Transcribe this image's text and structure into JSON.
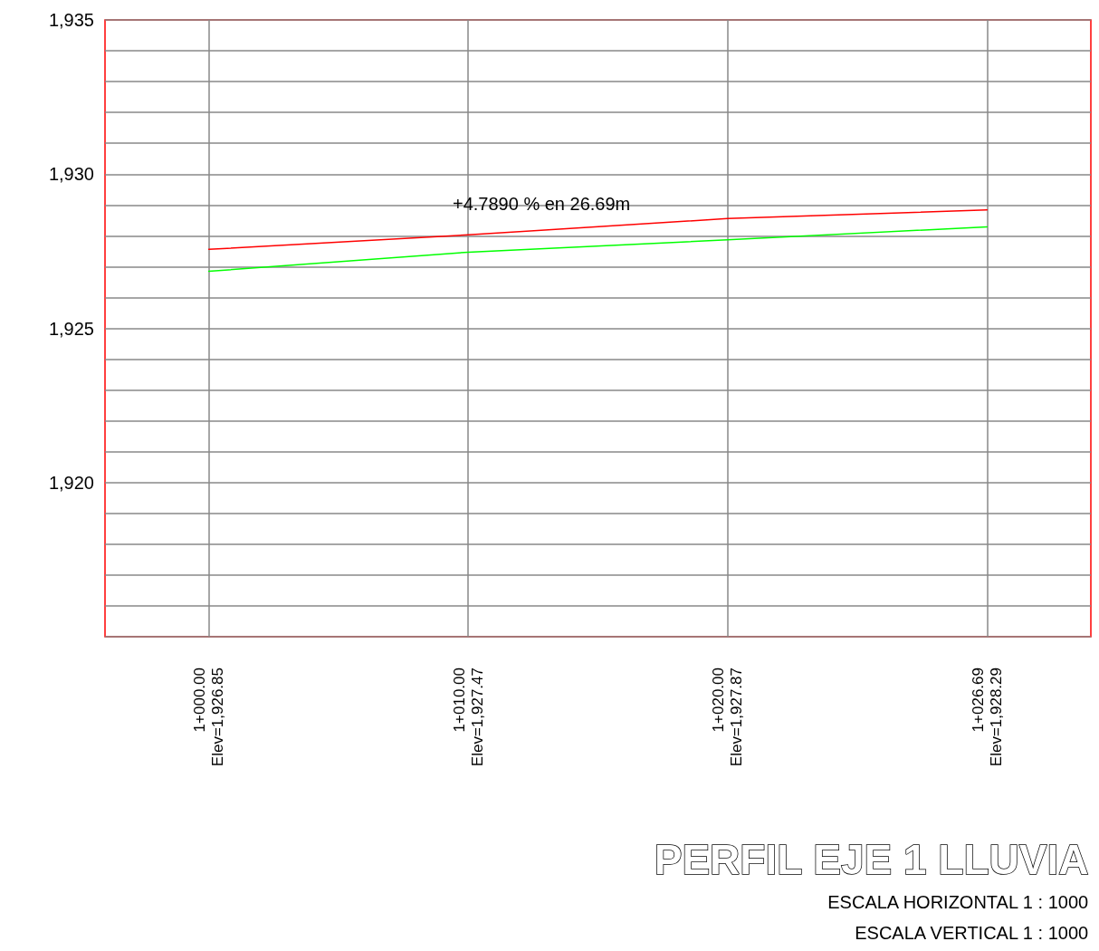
{
  "chart_data": {
    "type": "line",
    "title": "PERFIL EJE 1 LLUVIA",
    "annotations": [
      "+4.7890 % en 26.69m",
      "ESCALA HORIZONTAL 1 : 1000",
      "ESCALA VERTICAL 1 : 1000"
    ],
    "categories": [
      "1+000.00\nElev=1,926.85",
      "1+010.00\nElev=1,927.47",
      "1+020.00\nElev=1,927.87",
      "1+026.69\nElev=1,928.29"
    ],
    "series": [
      {
        "color": "#ff0000",
        "values": [
          1927.56,
          1928.03,
          1928.56,
          1928.84
        ]
      },
      {
        "color": "#00ff00",
        "values": [
          1926.85,
          1927.47,
          1927.87,
          1928.29
        ]
      }
    ],
    "ylim": [
      1915,
      1935
    ],
    "yticks": [
      {
        "value": 1915,
        "label": null
      },
      {
        "value": 1916,
        "label": null
      },
      {
        "value": 1917,
        "label": null
      },
      {
        "value": 1918,
        "label": null
      },
      {
        "value": 1919,
        "label": null
      },
      {
        "value": 1920,
        "label": "1,920"
      },
      {
        "value": 1921,
        "label": null
      },
      {
        "value": 1922,
        "label": null
      },
      {
        "value": 1923,
        "label": null
      },
      {
        "value": 1924,
        "label": null
      },
      {
        "value": 1925,
        "label": "1,925"
      },
      {
        "value": 1926,
        "label": null
      },
      {
        "value": 1927,
        "label": null
      },
      {
        "value": 1928,
        "label": null
      },
      {
        "value": 1929,
        "label": null
      },
      {
        "value": 1930,
        "label": "1,930"
      },
      {
        "value": 1931,
        "label": null
      },
      {
        "value": 1932,
        "label": null
      },
      {
        "value": 1933,
        "label": null
      },
      {
        "value": 1934,
        "label": null
      },
      {
        "value": 1935,
        "label": "1,935"
      }
    ],
    "grid": true,
    "marker": "none",
    "line_style": "solid"
  }
}
